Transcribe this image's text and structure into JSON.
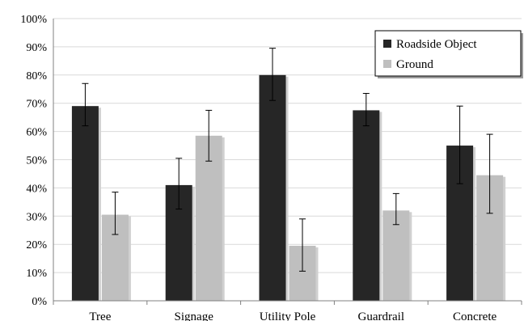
{
  "chart_data": {
    "type": "bar",
    "categories": [
      "Tree",
      "Signage",
      "Utility Pole",
      "Guardrail",
      "Concrete"
    ],
    "series": [
      {
        "name": "Roadside Object",
        "color": "#262626",
        "values": [
          69,
          41,
          80,
          67.5,
          55
        ],
        "error_low": [
          62,
          32.5,
          71,
          62,
          41.5
        ],
        "error_high": [
          77,
          50.5,
          89.5,
          73.5,
          69
        ]
      },
      {
        "name": "Ground",
        "color": "#bfbfbf",
        "values": [
          30.5,
          58.5,
          19.5,
          32,
          44.5
        ],
        "error_low": [
          23.5,
          49.5,
          10.5,
          27,
          31
        ],
        "error_high": [
          38.5,
          67.5,
          29,
          38,
          59
        ]
      }
    ],
    "ylim": [
      0,
      100
    ],
    "y_ticks": [
      "0%",
      "10%",
      "20%",
      "30%",
      "40%",
      "50%",
      "60%",
      "70%",
      "80%",
      "90%",
      "100%"
    ],
    "grid": true,
    "legend_position": "top-right",
    "title": "",
    "xlabel": "",
    "ylabel": ""
  }
}
